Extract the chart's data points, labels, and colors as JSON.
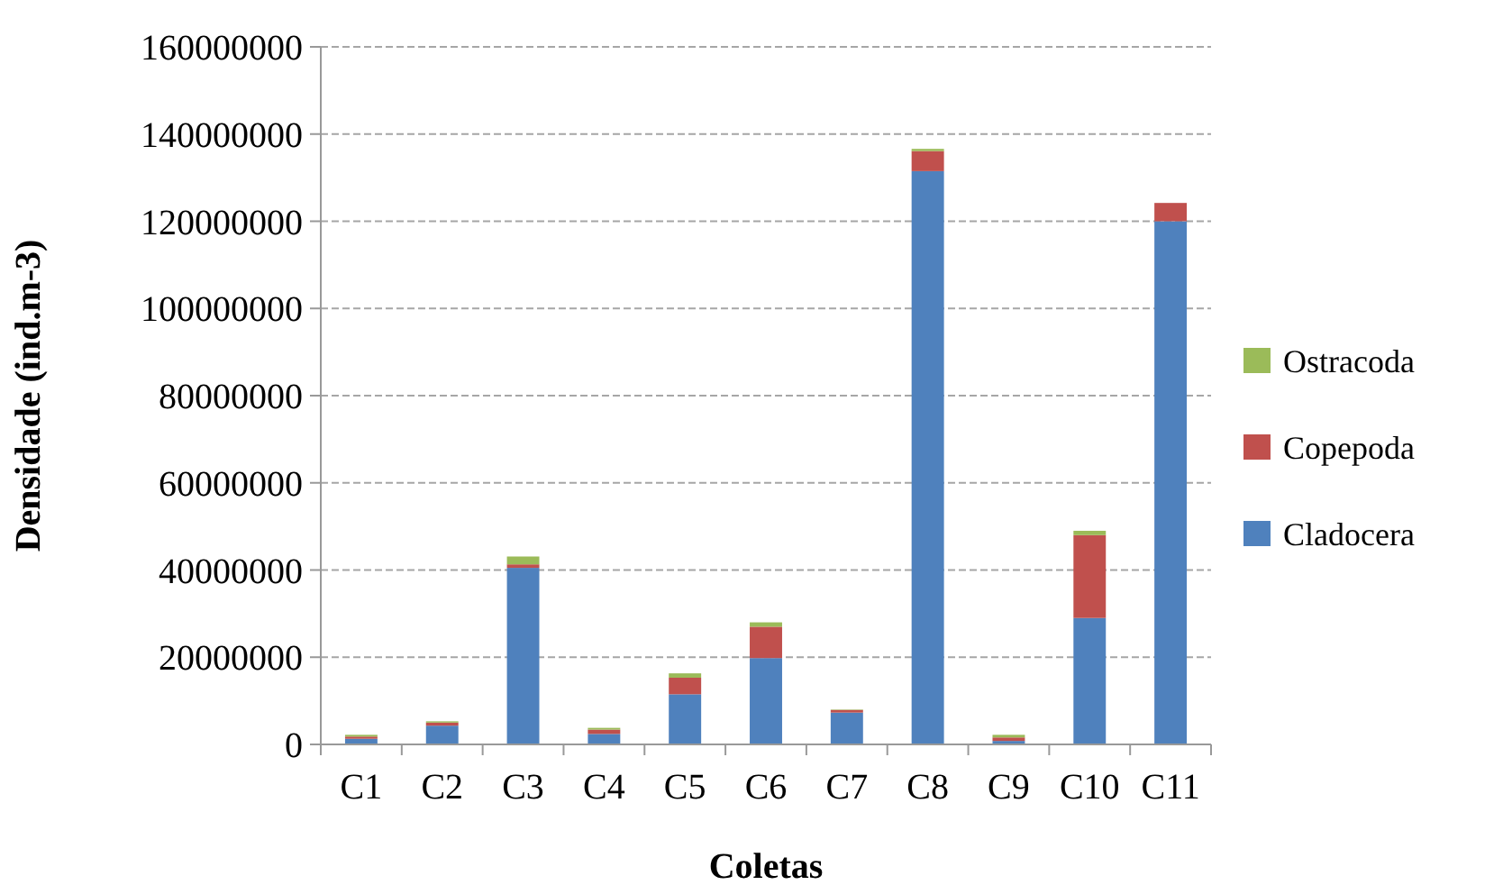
{
  "chart_data": {
    "type": "bar",
    "stacked": true,
    "xlabel": "Coletas",
    "ylabel": "Densidade (ind.m-3)",
    "categories": [
      "C1",
      "C2",
      "C3",
      "C4",
      "C5",
      "C6",
      "C7",
      "C8",
      "C9",
      "C10",
      "C11"
    ],
    "series": [
      {
        "name": "Cladocera",
        "color": "#4f81bd",
        "values": [
          1300000,
          4300000,
          40500000,
          2400000,
          11500000,
          19800000,
          7300000,
          131500000,
          800000,
          29000000,
          120000000
        ]
      },
      {
        "name": "Copepoda",
        "color": "#c0504d",
        "values": [
          500000,
          700000,
          800000,
          1000000,
          3800000,
          7200000,
          600000,
          4600000,
          800000,
          19000000,
          4200000
        ]
      },
      {
        "name": "Ostracoda",
        "color": "#9bbb59",
        "values": [
          400000,
          300000,
          1800000,
          400000,
          1000000,
          1000000,
          100000,
          500000,
          600000,
          1000000,
          0
        ]
      }
    ],
    "ylim": [
      0,
      160000000
    ],
    "yticks": [
      0,
      20000000,
      40000000,
      60000000,
      80000000,
      100000000,
      120000000,
      140000000,
      160000000
    ],
    "grid": "y",
    "legend": "right"
  }
}
